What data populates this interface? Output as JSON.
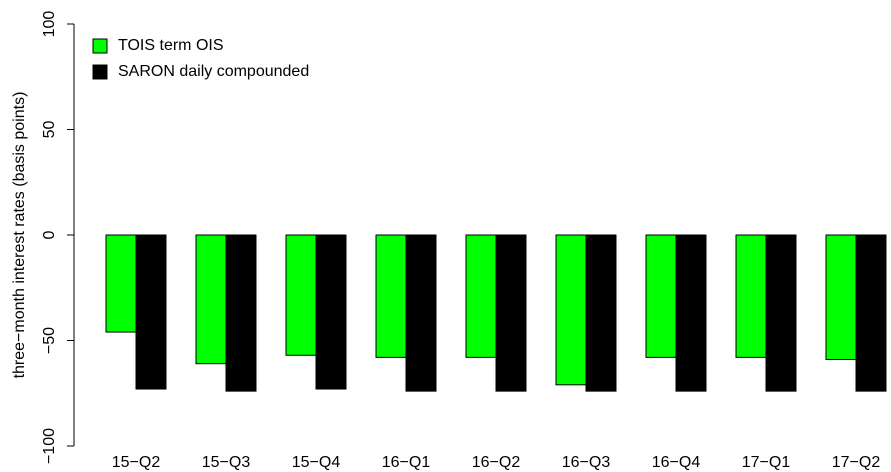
{
  "chart_data": {
    "type": "bar",
    "y_label": "three−month interest rates (basis points)",
    "categories": [
      "15−Q2",
      "15−Q3",
      "15−Q4",
      "16−Q1",
      "16−Q2",
      "16−Q3",
      "16−Q4",
      "17−Q1",
      "17−Q2"
    ],
    "series": [
      {
        "name": "TOIS term OIS",
        "color": "#00ff00",
        "values": [
          -46,
          -61,
          -57,
          -58,
          -58,
          -71,
          -58,
          -58,
          -59
        ]
      },
      {
        "name": "SARON daily compounded",
        "color": "#000000",
        "values": [
          -73,
          -74,
          -73,
          -74,
          -74,
          -74,
          -74,
          -74,
          -74
        ]
      }
    ],
    "ylim": [
      -100,
      100
    ],
    "yticks": [
      {
        "value": -100,
        "label": "−100"
      },
      {
        "value": -50,
        "label": "−50"
      },
      0,
      50,
      100
    ],
    "legend": "top-left"
  }
}
